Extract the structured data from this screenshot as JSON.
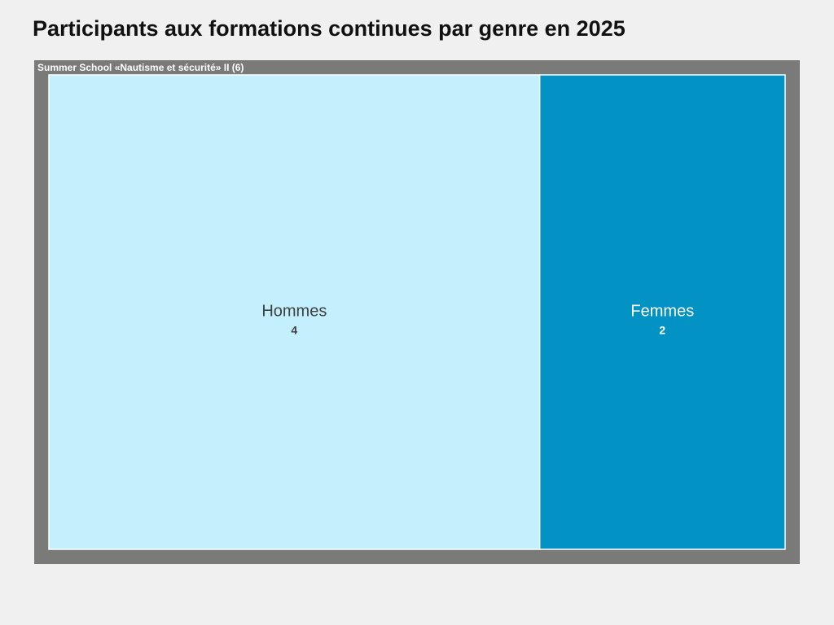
{
  "title": "Participants aux formations continues par genre en 2025",
  "colors": {
    "group": "#7a7a78",
    "group_label": "#ffffff",
    "border": "#ffffff"
  },
  "chart_data": {
    "type": "treemap",
    "group": {
      "label": "Summer School «Nautisme et sécurité» II (6)",
      "name": "Summer School «Nautisme et sécurité» II",
      "total": 6
    },
    "items": [
      {
        "name": "Hommes",
        "value": 4,
        "value_label": "4",
        "color": "#c4effd",
        "text_color": "#404040"
      },
      {
        "name": "Femmes",
        "value": 2,
        "value_label": "2",
        "color": "#0392c4",
        "text_color": "#ffffff"
      }
    ]
  }
}
